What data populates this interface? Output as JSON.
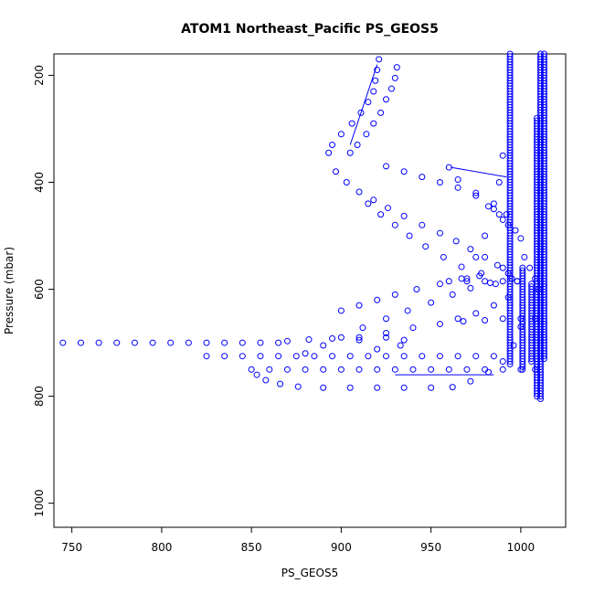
{
  "chart_data": {
    "type": "scatter",
    "title": "ATOM1 Northeast_Pacific PS_GEOS5",
    "xlabel": "PS_GEOS5",
    "ylabel": "Pressure (mbar)",
    "xlim": [
      740,
      1025
    ],
    "ylim": [
      1045,
      160
    ],
    "y_reversed": true,
    "x_ticks": [
      750,
      800,
      850,
      900,
      950,
      1000
    ],
    "x_tick_labels": [
      "750",
      "800",
      "850",
      "900",
      "950",
      "1000"
    ],
    "y_ticks": [
      200,
      400,
      600,
      800,
      1000
    ],
    "y_tick_labels": [
      "200",
      "400",
      "600",
      "800",
      "1000"
    ],
    "marker": "open-circle",
    "color": "#0000ff",
    "series": [
      {
        "points": [
          [
            745,
            700
          ],
          [
            755,
            700
          ],
          [
            765,
            700
          ],
          [
            775,
            700
          ],
          [
            785,
            700
          ],
          [
            795,
            700
          ],
          [
            805,
            700
          ],
          [
            815,
            700
          ],
          [
            825,
            700
          ],
          [
            835,
            700
          ],
          [
            845,
            700
          ],
          [
            855,
            700
          ],
          [
            865,
            700
          ],
          [
            825,
            725
          ],
          [
            835,
            725
          ],
          [
            845,
            725
          ],
          [
            855,
            725
          ],
          [
            865,
            725
          ],
          [
            875,
            725
          ],
          [
            885,
            725
          ],
          [
            895,
            725
          ],
          [
            905,
            725
          ],
          [
            915,
            725
          ],
          [
            925,
            725
          ],
          [
            935,
            725
          ],
          [
            945,
            725
          ],
          [
            955,
            725
          ],
          [
            965,
            725
          ],
          [
            975,
            725
          ],
          [
            985,
            725
          ],
          [
            850,
            750
          ],
          [
            860,
            750
          ],
          [
            870,
            750
          ],
          [
            880,
            750
          ],
          [
            890,
            750
          ],
          [
            900,
            750
          ],
          [
            910,
            750
          ],
          [
            920,
            750
          ],
          [
            930,
            750
          ],
          [
            940,
            750
          ],
          [
            950,
            750
          ],
          [
            960,
            750
          ],
          [
            970,
            750
          ],
          [
            980,
            750
          ],
          [
            990,
            750
          ],
          [
            1000,
            750
          ],
          [
            1008,
            750
          ],
          [
            853,
            760
          ],
          [
            858,
            770
          ],
          [
            866,
            777
          ],
          [
            876,
            782
          ],
          [
            890,
            784
          ],
          [
            905,
            784
          ],
          [
            920,
            784
          ],
          [
            935,
            784
          ],
          [
            950,
            784
          ],
          [
            962,
            783
          ],
          [
            972,
            772
          ],
          [
            982,
            755
          ],
          [
            990,
            735
          ],
          [
            996,
            705
          ],
          [
            1000,
            670
          ],
          [
            870,
            697
          ],
          [
            882,
            694
          ],
          [
            895,
            692
          ],
          [
            910,
            690
          ],
          [
            925,
            690
          ],
          [
            935,
            695
          ],
          [
            933,
            705
          ],
          [
            920,
            712
          ],
          [
            893,
            345
          ],
          [
            895,
            330
          ],
          [
            900,
            310
          ],
          [
            906,
            290
          ],
          [
            911,
            270
          ],
          [
            915,
            250
          ],
          [
            918,
            230
          ],
          [
            919,
            210
          ],
          [
            920,
            190
          ],
          [
            921,
            170
          ],
          [
            905,
            345
          ],
          [
            909,
            330
          ],
          [
            914,
            310
          ],
          [
            918,
            290
          ],
          [
            922,
            270
          ],
          [
            925,
            245
          ],
          [
            928,
            225
          ],
          [
            930,
            205
          ],
          [
            931,
            185
          ],
          [
            897,
            380
          ],
          [
            903,
            400
          ],
          [
            910,
            418
          ],
          [
            918,
            433
          ],
          [
            926,
            448
          ],
          [
            935,
            463
          ],
          [
            945,
            480
          ],
          [
            955,
            495
          ],
          [
            964,
            510
          ],
          [
            972,
            525
          ],
          [
            980,
            540
          ],
          [
            987,
            555
          ],
          [
            993,
            570
          ],
          [
            998,
            585
          ],
          [
            915,
            440
          ],
          [
            922,
            460
          ],
          [
            930,
            480
          ],
          [
            938,
            500
          ],
          [
            947,
            520
          ],
          [
            957,
            540
          ],
          [
            967,
            558
          ],
          [
            977,
            575
          ],
          [
            986,
            590
          ],
          [
            925,
            370
          ],
          [
            935,
            380
          ],
          [
            945,
            390
          ],
          [
            955,
            400
          ],
          [
            965,
            410
          ],
          [
            975,
            425
          ],
          [
            985,
            440
          ],
          [
            992,
            460
          ],
          [
            960,
            372
          ],
          [
            965,
            395
          ],
          [
            975,
            420
          ],
          [
            982,
            445
          ],
          [
            988,
            460
          ],
          [
            900,
            640
          ],
          [
            910,
            630
          ],
          [
            920,
            620
          ],
          [
            930,
            610
          ],
          [
            942,
            600
          ],
          [
            955,
            590
          ],
          [
            967,
            580
          ],
          [
            978,
            570
          ],
          [
            990,
            560
          ],
          [
            880,
            720
          ],
          [
            890,
            705
          ],
          [
            900,
            690
          ],
          [
            912,
            672
          ],
          [
            925,
            655
          ],
          [
            937,
            640
          ],
          [
            950,
            625
          ],
          [
            962,
            610
          ],
          [
            972,
            598
          ],
          [
            983,
            588
          ],
          [
            995,
            580
          ],
          [
            910,
            695
          ],
          [
            925,
            682
          ],
          [
            940,
            672
          ],
          [
            955,
            665
          ],
          [
            968,
            660
          ],
          [
            980,
            658
          ],
          [
            990,
            655
          ],
          [
            1000,
            655
          ],
          [
            1008,
            655
          ],
          [
            965,
            655
          ],
          [
            975,
            645
          ],
          [
            985,
            630
          ],
          [
            993,
            615
          ],
          [
            960,
            585
          ],
          [
            970,
            585
          ],
          [
            980,
            585
          ],
          [
            990,
            585
          ],
          [
            998,
            585
          ],
          [
            990,
            350
          ],
          [
            988,
            400
          ],
          [
            985,
            450
          ],
          [
            980,
            500
          ],
          [
            975,
            540
          ],
          [
            970,
            580
          ],
          [
            1002,
            540
          ],
          [
            1005,
            560
          ],
          [
            1008,
            580
          ],
          [
            1010,
            600
          ],
          [
            990,
            470
          ],
          [
            993,
            480
          ],
          [
            997,
            490
          ],
          [
            1000,
            505
          ]
        ],
        "vertical_lines": [
          {
            "x": 994,
            "from": 160,
            "to": 740
          },
          {
            "x": 1001,
            "from": 560,
            "to": 750
          },
          {
            "x": 1006,
            "from": 590,
            "to": 735
          },
          {
            "x": 1009,
            "from": 280,
            "to": 800
          },
          {
            "x": 1011,
            "from": 160,
            "to": 805
          },
          {
            "x": 1013,
            "from": 160,
            "to": 730
          }
        ]
      }
    ],
    "connector_lines": [
      {
        "x1": 961,
        "y1": 372,
        "x2": 992,
        "y2": 390
      },
      {
        "x1": 905,
        "y1": 330,
        "x2": 920,
        "y2": 180
      },
      {
        "x1": 930,
        "y1": 760,
        "x2": 985,
        "y2": 760
      }
    ]
  }
}
